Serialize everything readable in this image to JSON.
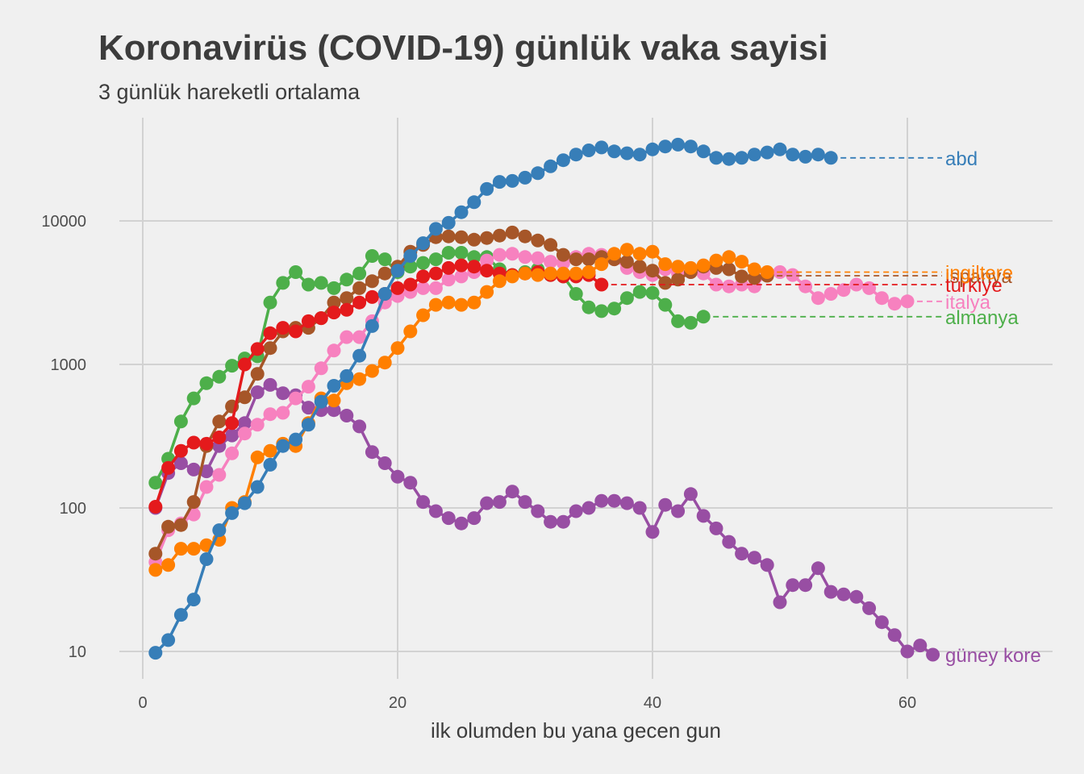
{
  "chart_data": {
    "type": "line",
    "title": "Koronavirüs (COVID-19) günlük vaka sayisi",
    "subtitle": "3 günlük hareketli ortalama",
    "xlabel": "ilk olumden bu yana gecen gun",
    "ylabel": "",
    "y_scale": "log10",
    "xlim": [
      -4,
      71
    ],
    "ylim": [
      7,
      60000
    ],
    "x_ticks": [
      0,
      20,
      40,
      60
    ],
    "x_tick_labels": [
      "0",
      "20",
      "40",
      "60"
    ],
    "y_ticks": [
      10,
      100,
      1000,
      10000
    ],
    "y_tick_labels": [
      "10",
      "100",
      "1000",
      "10000"
    ],
    "grid": true,
    "legend": "end-of-line labels on the right",
    "series": [
      {
        "name": "güney kore",
        "color": "#984ea3",
        "x_start": 1,
        "values": [
          100,
          175,
          205,
          185,
          180,
          270,
          320,
          390,
          640,
          720,
          630,
          610,
          500,
          480,
          480,
          440,
          370,
          245,
          205,
          165,
          150,
          110,
          95,
          85,
          78,
          85,
          108,
          110,
          130,
          110,
          95,
          80,
          80,
          95,
          100,
          112,
          112,
          108,
          100,
          68,
          105,
          95,
          125,
          88,
          72,
          58,
          48,
          45,
          40,
          22,
          29,
          29,
          38,
          26,
          25,
          24,
          20,
          16,
          13,
          10,
          11,
          9.5
        ]
      },
      {
        "name": "almanya",
        "color": "#4daf4a",
        "x_start": 1,
        "values": [
          150,
          220,
          400,
          580,
          740,
          820,
          980,
          1100,
          1140,
          2700,
          3700,
          4400,
          3600,
          3700,
          3400,
          3900,
          4300,
          5700,
          5400,
          4400,
          4800,
          5100,
          5400,
          6000,
          6000,
          5600,
          5600,
          4600,
          4200,
          4400,
          4600,
          4200,
          4100,
          3100,
          2500,
          2350,
          2450,
          2900,
          3200,
          3150,
          2600,
          2000,
          1950,
          2150
        ]
      },
      {
        "name": "italya",
        "color": "#f781bf",
        "x_start": 1,
        "values": [
          42,
          70,
          78,
          90,
          140,
          170,
          240,
          330,
          380,
          450,
          460,
          580,
          700,
          940,
          1250,
          1550,
          1550,
          2000,
          2700,
          3000,
          3200,
          3400,
          3400,
          3900,
          4100,
          4400,
          5300,
          5800,
          5900,
          5600,
          5500,
          5200,
          5100,
          5600,
          5900,
          5800,
          5400,
          4700,
          4400,
          4200,
          4600,
          4300,
          4400,
          4300,
          3600,
          3500,
          3600,
          3500,
          4300,
          4400,
          4200,
          3500,
          2900,
          3100,
          3300,
          3600,
          3400,
          2900,
          2650,
          2750
        ]
      },
      {
        "name": "ispanya",
        "color": "#a65628",
        "x_start": 1,
        "values": [
          48,
          74,
          76,
          110,
          270,
          400,
          510,
          590,
          860,
          1300,
          1700,
          1800,
          1800,
          2100,
          2700,
          2900,
          3400,
          3800,
          4300,
          4800,
          6100,
          6800,
          7700,
          7800,
          7700,
          7400,
          7600,
          7900,
          8300,
          7800,
          7300,
          6800,
          5800,
          5400,
          5400,
          5600,
          5400,
          5200,
          4800,
          4500,
          3700,
          3900,
          4400,
          4800,
          4700,
          4600,
          4100,
          4000,
          4150
        ]
      },
      {
        "name": "türkiye",
        "color": "#e41a1c",
        "x_start": 1,
        "values": [
          102,
          190,
          250,
          285,
          280,
          310,
          390,
          1000,
          1280,
          1650,
          1800,
          1700,
          2000,
          2100,
          2300,
          2400,
          2700,
          2950,
          3100,
          3400,
          3600,
          4100,
          4300,
          4700,
          4900,
          4800,
          4500,
          4300,
          4200,
          4300,
          4400,
          4200,
          4100,
          4100,
          4200,
          3600
        ]
      },
      {
        "name": "ingiltere",
        "color": "#ff7f00",
        "x_start": 1,
        "values": [
          37,
          40,
          52,
          52,
          55,
          60,
          100,
          110,
          225,
          250,
          280,
          270,
          390,
          580,
          560,
          740,
          790,
          900,
          1030,
          1300,
          1700,
          2200,
          2600,
          2700,
          2600,
          2700,
          3200,
          3800,
          4100,
          4300,
          4200,
          4300,
          4300,
          4300,
          4400,
          5000,
          5900,
          6300,
          5900,
          6100,
          5000,
          4800,
          4700,
          4900,
          5300,
          5600,
          5200,
          4600,
          4400
        ]
      },
      {
        "name": "abd",
        "color": "#377eb8",
        "x_start": 1,
        "values": [
          9.8,
          12,
          18,
          23,
          44,
          70,
          92,
          108,
          140,
          200,
          270,
          300,
          380,
          550,
          710,
          830,
          1150,
          1850,
          3100,
          4500,
          5700,
          7000,
          8800,
          9700,
          11500,
          13500,
          16700,
          18700,
          19000,
          20000,
          21500,
          24000,
          26500,
          29000,
          31000,
          32500,
          30500,
          29600,
          29000,
          31500,
          33000,
          34000,
          33000,
          30500,
          27500,
          27000,
          27500,
          29000,
          30000,
          31500,
          29000,
          28000,
          29000,
          27500
        ]
      }
    ]
  },
  "colors": {
    "background": "#f0f0f0",
    "grid": "#d2d2d2",
    "text": "#3c3c3c"
  }
}
